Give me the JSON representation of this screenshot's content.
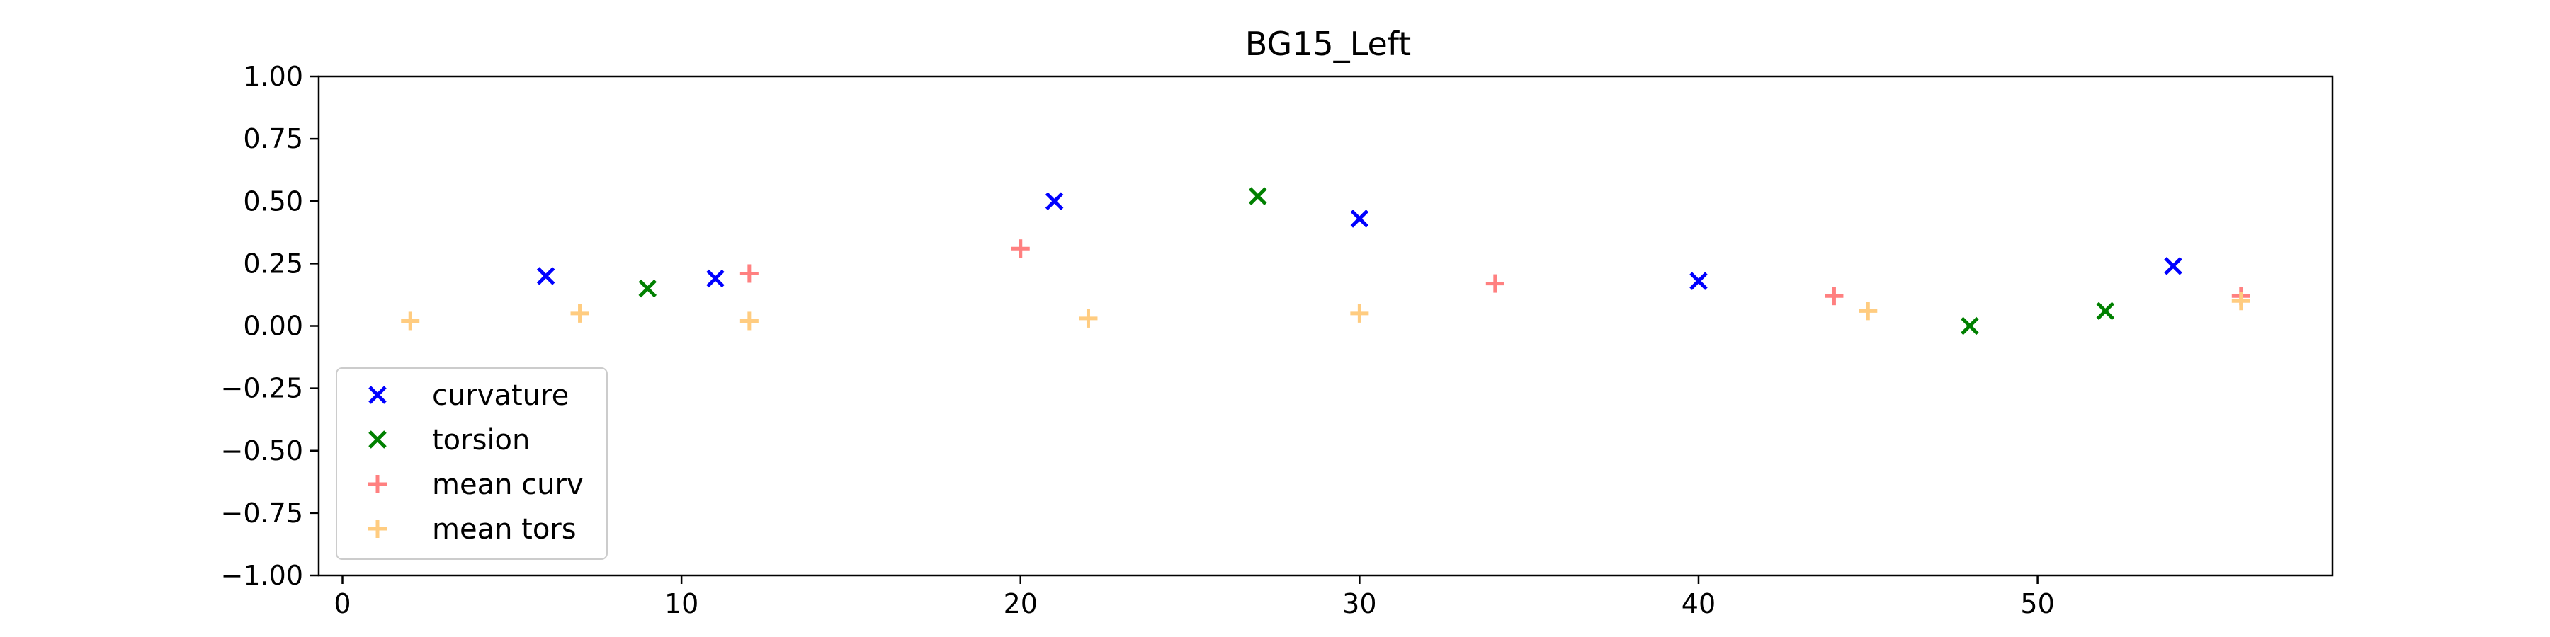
{
  "chart_data": {
    "type": "scatter",
    "title": "BG15_Left",
    "xlabel": "",
    "ylabel": "",
    "xlim": [
      -0.7,
      58.7
    ],
    "ylim": [
      -1.0,
      1.0
    ],
    "xticks": [
      0,
      10,
      20,
      30,
      40,
      50
    ],
    "yticks": [
      -1.0,
      -0.75,
      -0.5,
      -0.25,
      0.0,
      0.25,
      0.5,
      0.75,
      1.0
    ],
    "ytick_labels": [
      "−1.00",
      "−0.75",
      "−0.50",
      "−0.25",
      "0.00",
      "0.25",
      "0.50",
      "0.75",
      "1.00"
    ],
    "grid": false,
    "legend_position": "lower-left",
    "series": [
      {
        "name": "curvature",
        "marker": "x",
        "color": "#0000ff",
        "points": [
          [
            6,
            0.2
          ],
          [
            11,
            0.19
          ],
          [
            21,
            0.5
          ],
          [
            30,
            0.43
          ],
          [
            40,
            0.18
          ],
          [
            54,
            0.24
          ]
        ]
      },
      {
        "name": "torsion",
        "marker": "x",
        "color": "#008000",
        "points": [
          [
            9,
            0.15
          ],
          [
            27,
            0.52
          ],
          [
            48,
            0.0
          ],
          [
            52,
            0.06
          ]
        ]
      },
      {
        "name": "mean curv",
        "marker": "+",
        "color": "#ff8080",
        "points": [
          [
            12,
            0.21
          ],
          [
            20,
            0.31
          ],
          [
            34,
            0.17
          ],
          [
            44,
            0.12
          ],
          [
            56,
            0.12
          ]
        ]
      },
      {
        "name": "mean tors",
        "marker": "+",
        "color": "#ffcc80",
        "points": [
          [
            2,
            0.02
          ],
          [
            7,
            0.05
          ],
          [
            12,
            0.02
          ],
          [
            22,
            0.03
          ],
          [
            30,
            0.05
          ],
          [
            45,
            0.06
          ],
          [
            56,
            0.1
          ]
        ]
      }
    ]
  }
}
